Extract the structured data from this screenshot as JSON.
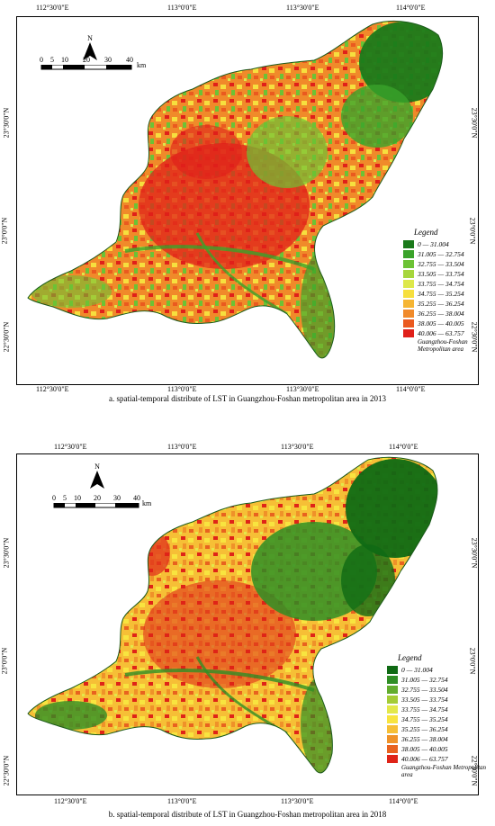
{
  "maps": [
    {
      "caption": "a. spatial-temporal distribute of LST in Guangzhou-Foshan metropolitan area in 2013",
      "top_ticks": [
        "112°30'0\"E",
        "113°0'0\"E",
        "113°30'0\"E",
        "114°0'0\"E"
      ],
      "bottom_ticks": [
        "112°30'0\"E",
        "113°0'0\"E",
        "113°30'0\"E",
        "114°0'0\"E"
      ],
      "left_ticks": [
        "23°30'0\"N",
        "23°0'0\"N",
        "22°30'0\"N"
      ],
      "right_ticks": [
        "23°30'0\"N",
        "23°0'0\"N",
        "22°30'0\"N"
      ],
      "legend_title": "Legend",
      "legend": [
        {
          "label": "0 — 31.004",
          "color": "#1a7a1a"
        },
        {
          "label": "31.005 — 32.754",
          "color": "#3aa32a"
        },
        {
          "label": "32.755 — 33.504",
          "color": "#6cc235"
        },
        {
          "label": "33.505 — 33.754",
          "color": "#a6d63c"
        },
        {
          "label": "33.755 — 34.754",
          "color": "#dde84a"
        },
        {
          "label": "34.755 — 35.254",
          "color": "#f6df3e"
        },
        {
          "label": "35.255 — 36.254",
          "color": "#f5b533"
        },
        {
          "label": "36.255 — 38.004",
          "color": "#f08a2a"
        },
        {
          "label": "38.005 — 40.005",
          "color": "#ea5a1f"
        },
        {
          "label": "40.006 — 63.757",
          "color": "#e0201a"
        }
      ],
      "area_label": "Guangzhou-Foshan Metropolitan area",
      "north_label": "N",
      "scale_ticks": [
        "0",
        "5",
        "10",
        "20",
        "30",
        "40"
      ],
      "scale_unit": "km"
    },
    {
      "caption": "b. spatial-temporal distribute of LST in Guangzhou-Foshan metropolitan area in 2018",
      "top_ticks": [
        "112°30'0\"E",
        "113°0'0\"E",
        "113°30'0\"E",
        "114°0'0\"E"
      ],
      "bottom_ticks": [
        "112°30'0\"E",
        "113°0'0\"E",
        "113°30'0\"E",
        "114°0'0\"E"
      ],
      "left_ticks": [
        "23°30'0\"N",
        "23°0'0\"N",
        "22°30'0\"N"
      ],
      "right_ticks": [
        "23°30'0\"N",
        "23°0'0\"N",
        "22°30'0\"N"
      ],
      "legend_title": "Legend",
      "legend": [
        {
          "label": "0 — 31.004",
          "color": "#0f6a14"
        },
        {
          "label": "31.005 — 32.754",
          "color": "#2f8e25"
        },
        {
          "label": "32.755 — 33.504",
          "color": "#62ad2e"
        },
        {
          "label": "33.505 — 33.754",
          "color": "#a4cc36"
        },
        {
          "label": "33.755 — 34.754",
          "color": "#e3e84a"
        },
        {
          "label": "34.755 — 35.254",
          "color": "#f8e43f"
        },
        {
          "label": "35.255 — 36.254",
          "color": "#f6bf36"
        },
        {
          "label": "36.255 — 38.004",
          "color": "#ef9229"
        },
        {
          "label": "38.005 — 40.005",
          "color": "#e8621f"
        },
        {
          "label": "40.006 — 63.757",
          "color": "#df2418"
        }
      ],
      "area_label": "Guangzhou-Foshan Metropolitan area",
      "north_label": "N",
      "scale_ticks": [
        "0",
        "5",
        "10",
        "20",
        "30",
        "40"
      ],
      "scale_unit": "km"
    }
  ]
}
